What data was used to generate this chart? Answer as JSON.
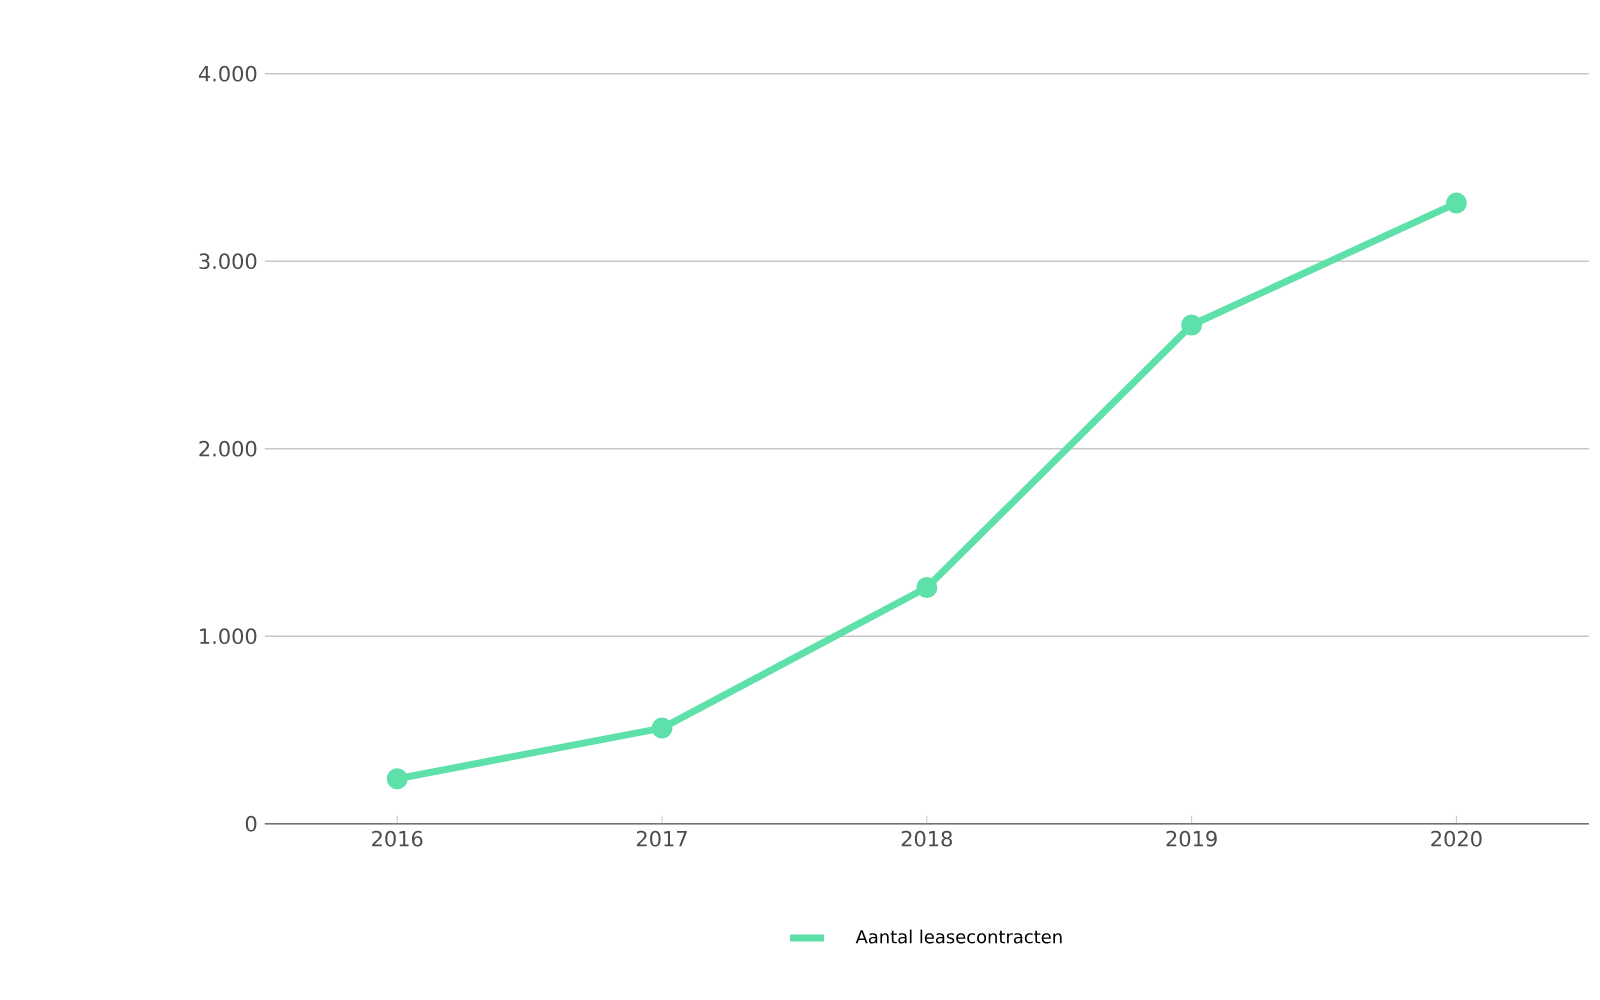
{
  "chart_data": {
    "type": "line",
    "categories": [
      "2016",
      "2017",
      "2018",
      "2019",
      "2020"
    ],
    "series": [
      {
        "name": "Aantal leasecontracten",
        "color": "#5ee0aa",
        "values": [
          240,
          510,
          1260,
          2660,
          3310
        ]
      }
    ],
    "ylim": [
      0,
      4000
    ],
    "yticks": [
      0,
      {
        "value": 1000,
        "label": "1.000"
      },
      {
        "value": 2000,
        "label": "2.000"
      },
      {
        "value": 3000,
        "label": "3.000"
      },
      {
        "value": 4000,
        "label": "4.000"
      }
    ],
    "grid": "y",
    "legend": "bottom",
    "marker": "circle",
    "line_style": "solid"
  }
}
